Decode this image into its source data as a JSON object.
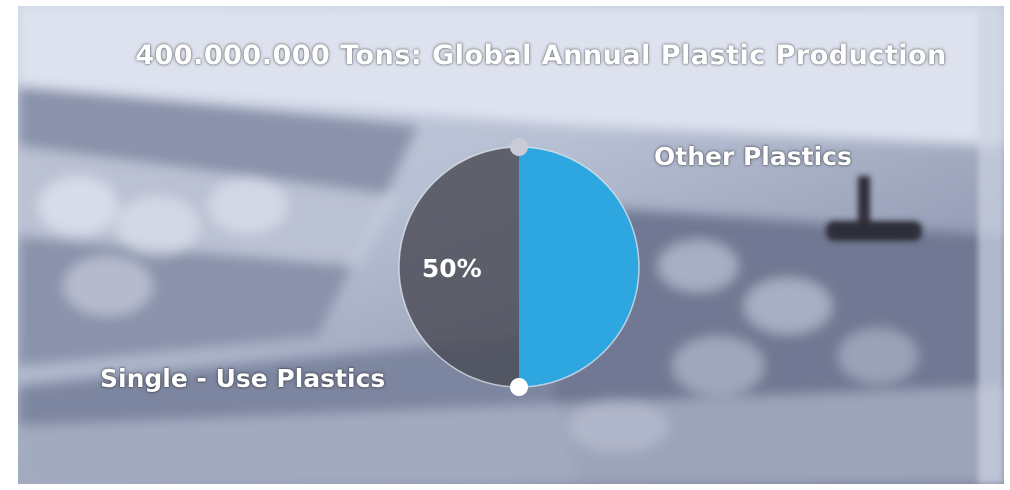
{
  "chart_data": {
    "type": "pie",
    "title": "400.000.000 Tons: Global Annual Plastic Production",
    "slices": [
      {
        "label": "Single - Use Plastics",
        "value": 50,
        "value_label": "50%",
        "color": "#4a4c55"
      },
      {
        "label": "Other Plastics",
        "value": 50,
        "color": "#2ea6e0"
      }
    ],
    "legend": "none"
  }
}
